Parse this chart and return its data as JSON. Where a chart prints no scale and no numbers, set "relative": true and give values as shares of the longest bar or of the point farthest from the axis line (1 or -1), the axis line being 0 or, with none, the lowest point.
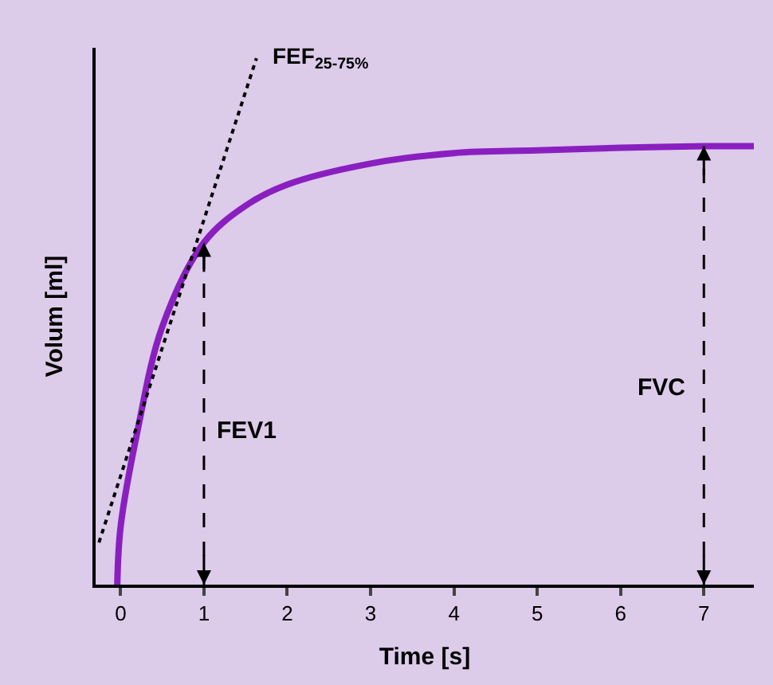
{
  "chart_data": {
    "type": "line",
    "relative": true,
    "xlabel": "Time [s]",
    "ylabel": "Volum [ml]",
    "xlim": [
      -0.3,
      7.6
    ],
    "xticks": [
      0,
      1,
      2,
      3,
      4,
      5,
      6,
      7
    ],
    "grid": false,
    "marker": "none",
    "series": [
      {
        "color": "#8a1fc0",
        "line_style": "solid",
        "x": [
          -0.04,
          0,
          0.2,
          0.5,
          1,
          1.5,
          2,
          3,
          4,
          5,
          6,
          7,
          7.6
        ],
        "values": [
          0,
          0.11,
          0.29,
          0.49,
          0.65,
          0.72,
          0.76,
          0.8,
          0.82,
          0.825,
          0.83,
          0.833,
          0.833
        ]
      },
      {
        "color": "#000000",
        "line_style": "dotted",
        "x": [
          -0.26,
          1.63
        ],
        "values": [
          0.08,
          1.0
        ]
      }
    ],
    "ref_lines": [
      {
        "axis": "x",
        "value": 1,
        "label": "FEV1",
        "line_style": "dashed",
        "color": "#000000"
      },
      {
        "axis": "x",
        "value": 7,
        "label": "FVC",
        "line_style": "dashed",
        "color": "#000000"
      }
    ],
    "annotations": [
      {
        "text": "FEF$_{25-75%}$",
        "x": 1.63,
        "y": 1.0
      }
    ]
  }
}
